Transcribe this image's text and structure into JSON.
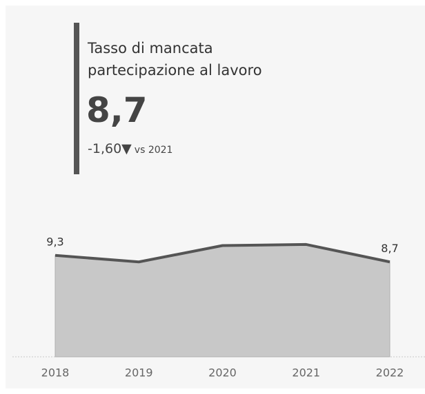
{
  "chart_data": {
    "type": "area",
    "title": "Tasso di mancata partecipazione al lavoro",
    "kpi": "8,7",
    "delta": "-1,60",
    "delta_symbol": "▼",
    "delta_reference": "vs 2021",
    "categories": [
      "2018",
      "2019",
      "2020",
      "2021",
      "2022"
    ],
    "values": [
      9.3,
      8.7,
      10.2,
      10.3,
      8.7
    ],
    "value_labels": [
      "9,3",
      null,
      null,
      null,
      "8,7"
    ],
    "ylim": [
      0,
      12
    ],
    "line_color": "#555555",
    "fill_color": "#c8c8c8"
  }
}
